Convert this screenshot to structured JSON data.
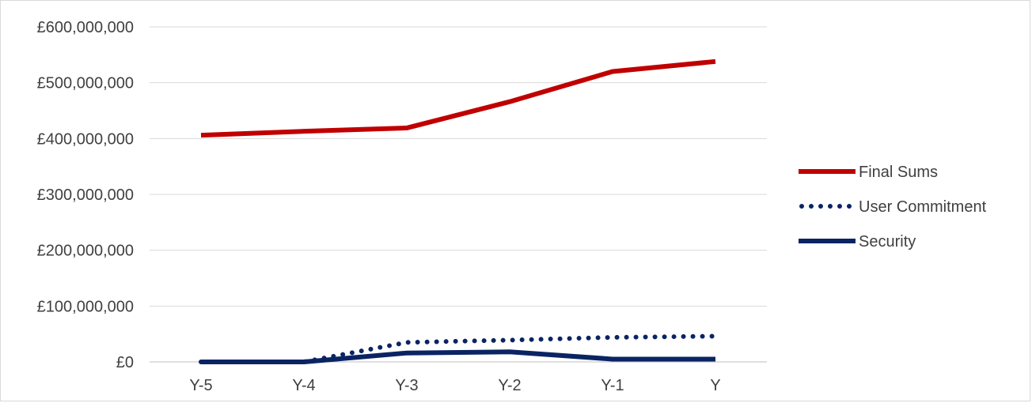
{
  "chart_data": {
    "type": "line",
    "title": "",
    "xlabel": "",
    "ylabel": "",
    "categories": [
      "Y-5",
      "Y-4",
      "Y-3",
      "Y-2",
      "Y-1",
      "Y"
    ],
    "ylim": [
      0,
      600000000
    ],
    "yticks": [
      0,
      100000000,
      200000000,
      300000000,
      400000000,
      500000000,
      600000000
    ],
    "ytick_labels": [
      "£0",
      "£100,000,000",
      "£200,000,000",
      "£300,000,000",
      "£400,000,000",
      "£500,000,000",
      "£600,000,000"
    ],
    "grid": true,
    "legend_position": "right",
    "series": [
      {
        "name": "Final Sums",
        "values": [
          406000000,
          413000000,
          419000000,
          466000000,
          520000000,
          538000000
        ],
        "color": "#c00000",
        "style": "solid"
      },
      {
        "name": "User Commitment",
        "values": [
          0,
          0,
          35000000,
          39000000,
          44000000,
          46000000
        ],
        "color": "#0a2463",
        "style": "dotted"
      },
      {
        "name": "Security",
        "values": [
          0,
          0,
          16000000,
          18000000,
          5000000,
          5000000
        ],
        "color": "#0a2463",
        "style": "solid"
      }
    ]
  }
}
